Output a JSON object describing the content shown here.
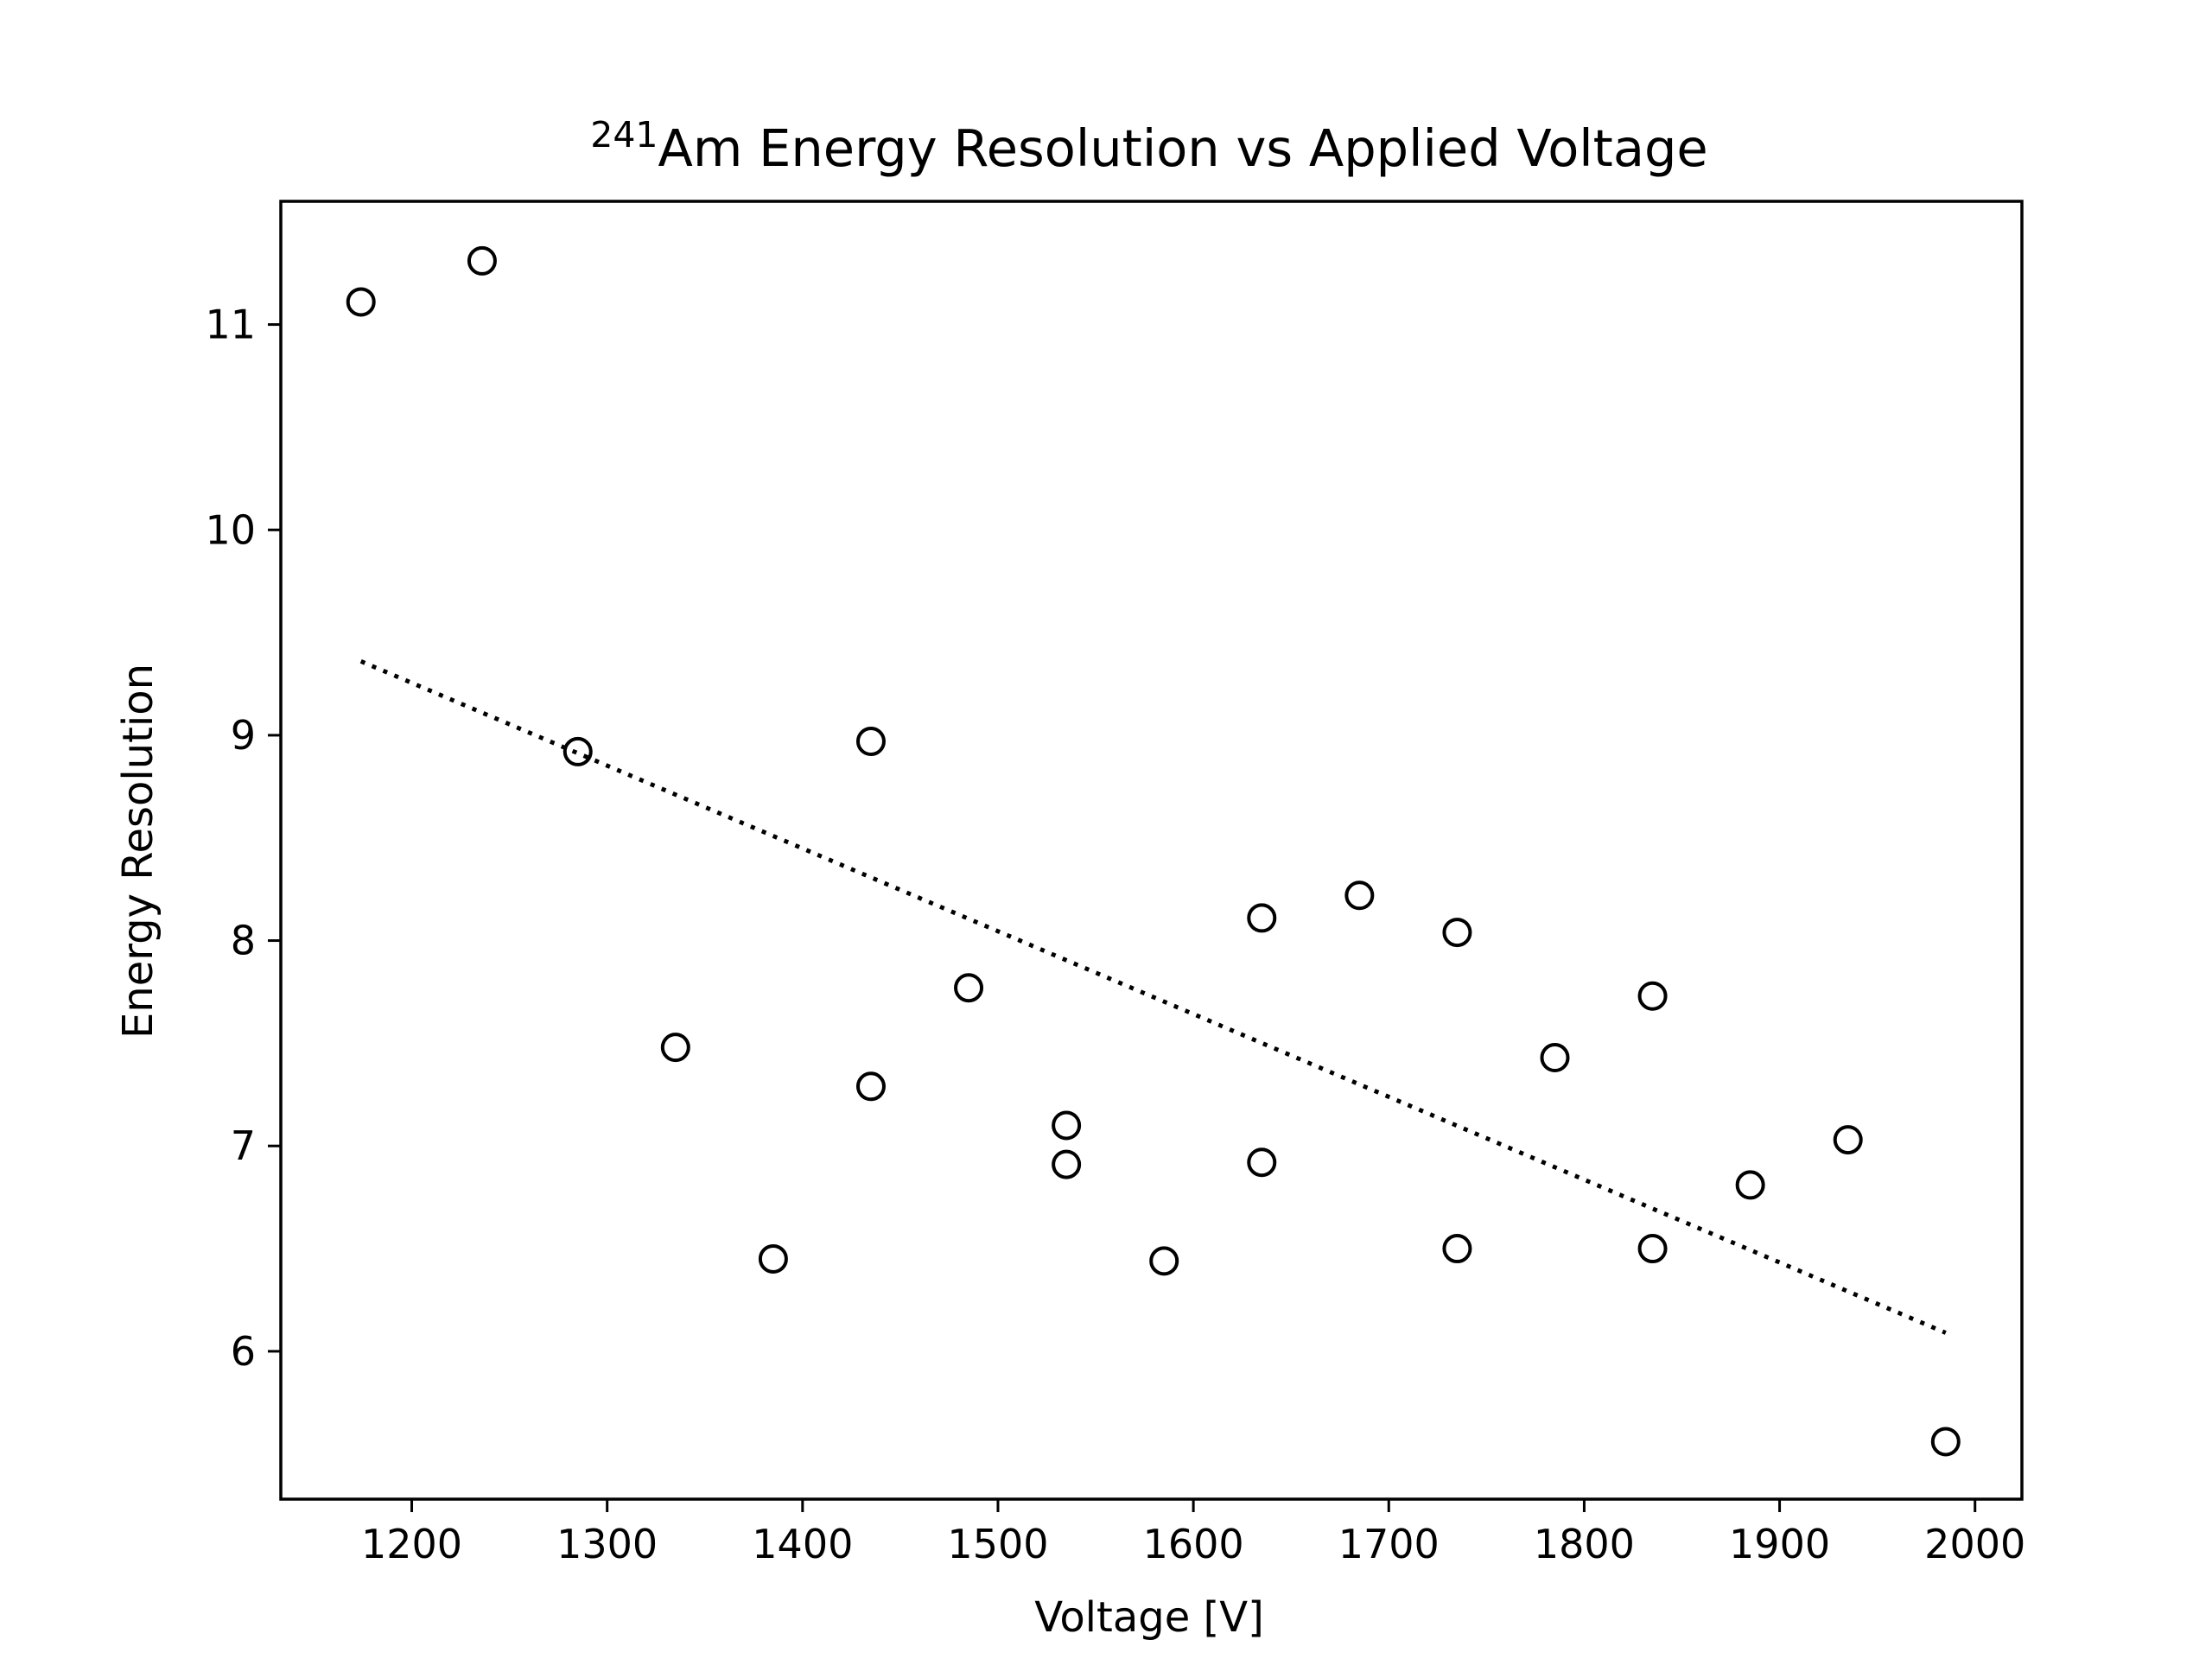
{
  "chart_data": {
    "type": "scatter",
    "title": {
      "superscript": "241",
      "text": "Am Energy Resolution vs Applied Voltage"
    },
    "xlabel": "Voltage [V]",
    "ylabel": "Energy Resolution",
    "xlim": [
      1133,
      2024
    ],
    "ylim": [
      5.28,
      11.6
    ],
    "xticks": [
      1200,
      1300,
      1400,
      1500,
      1600,
      1700,
      1800,
      1900,
      2000
    ],
    "yticks": [
      6,
      7,
      8,
      9,
      10,
      11
    ],
    "grid": false,
    "legend": "none",
    "series": [
      {
        "marker": "open-circle",
        "color": "#000000",
        "points": [
          {
            "x": 1174,
            "y": 11.11
          },
          {
            "x": 1236,
            "y": 11.31
          },
          {
            "x": 1285,
            "y": 8.92
          },
          {
            "x": 1335,
            "y": 7.48
          },
          {
            "x": 1385,
            "y": 6.45
          },
          {
            "x": 1435,
            "y": 8.97
          },
          {
            "x": 1435,
            "y": 7.29
          },
          {
            "x": 1485,
            "y": 7.77
          },
          {
            "x": 1535,
            "y": 7.1
          },
          {
            "x": 1535,
            "y": 6.91
          },
          {
            "x": 1585,
            "y": 6.44
          },
          {
            "x": 1635,
            "y": 8.11
          },
          {
            "x": 1635,
            "y": 6.92
          },
          {
            "x": 1685,
            "y": 8.22
          },
          {
            "x": 1735,
            "y": 8.04
          },
          {
            "x": 1735,
            "y": 6.5
          },
          {
            "x": 1785,
            "y": 7.43
          },
          {
            "x": 1835,
            "y": 7.73
          },
          {
            "x": 1835,
            "y": 6.5
          },
          {
            "x": 1885,
            "y": 6.81
          },
          {
            "x": 1935,
            "y": 7.03
          },
          {
            "x": 1985,
            "y": 5.56
          }
        ]
      }
    ],
    "fit_line": {
      "style": "dotted",
      "color": "#000000",
      "points": [
        {
          "x": 1174,
          "y": 9.36
        },
        {
          "x": 1985,
          "y": 6.09
        }
      ]
    }
  }
}
